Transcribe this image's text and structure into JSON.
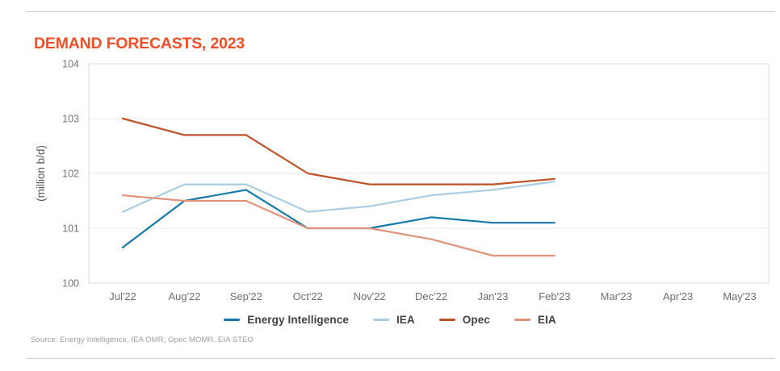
{
  "page": {
    "title": "DEMAND FORECASTS, 2023",
    "source_note": "Source: Energy Intelligence, IEA OMR, Opec MOMR, EIA STEO",
    "colors": {
      "title": "#f04e26",
      "page_rule": "#cccccc",
      "plot_border": "#d9d9d9",
      "gridline": "#e9e9e9",
      "tick_label": "#757575",
      "axis_label": "#595959",
      "legend_text": "#3f3f46",
      "source_text": "#9e9e9e"
    }
  },
  "chart_data": {
    "type": "line",
    "title": "DEMAND FORECASTS, 2023",
    "xlabel": "",
    "ylabel": "(million b/d)",
    "categories": [
      "Jul'22",
      "Aug'22",
      "Sep'22",
      "Oct'22",
      "Nov'22",
      "Dec'22",
      "Jan'23",
      "Feb'23",
      "Mar'23",
      "Apr'23",
      "May'23"
    ],
    "ylim": [
      100,
      104
    ],
    "yticks": [
      100,
      101,
      102,
      103,
      104
    ],
    "grid": "horizontal",
    "legend_position": "bottom-center",
    "series": [
      {
        "name": "Energy Intelligence",
        "color": "#1478a8",
        "values": [
          100.65,
          101.5,
          101.7,
          101.0,
          101.0,
          101.2,
          101.1,
          101.1,
          null,
          null,
          null
        ]
      },
      {
        "name": "IEA",
        "color": "#a9cee3",
        "values": [
          101.3,
          101.8,
          101.8,
          101.3,
          101.4,
          101.6,
          101.7,
          101.85,
          null,
          null,
          null
        ]
      },
      {
        "name": "Opec",
        "color": "#c05227",
        "values": [
          103.0,
          102.7,
          102.7,
          102.0,
          101.8,
          101.8,
          101.8,
          101.9,
          null,
          null,
          null
        ]
      },
      {
        "name": "EIA",
        "color": "#e0937a",
        "values": [
          101.6,
          101.5,
          101.5,
          101.0,
          101.0,
          100.8,
          100.5,
          100.5,
          null,
          null,
          null
        ]
      }
    ]
  }
}
